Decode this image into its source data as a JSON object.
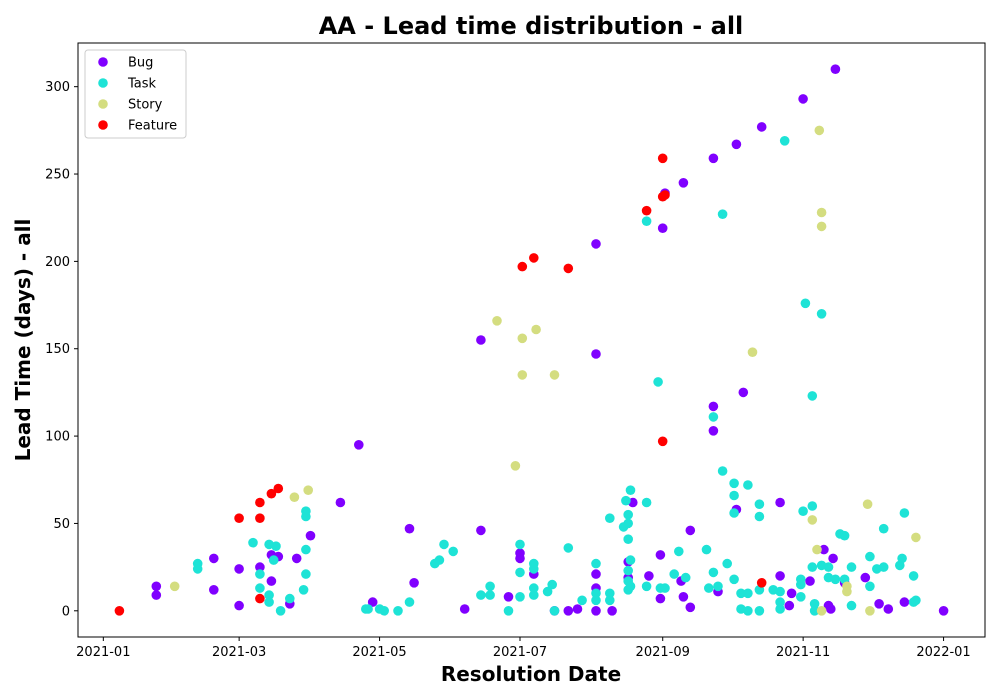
{
  "chart_data": {
    "type": "scatter",
    "title": "AA - Lead time distribution - all",
    "xlabel": "Resolution Date",
    "ylabel": "Lead Time (days) - all",
    "xlim": [
      "2020-12-21",
      "2022-01-19"
    ],
    "ylim": [
      -15,
      325
    ],
    "x_ticks": [
      "2021-01",
      "2021-03",
      "2021-05",
      "2021-07",
      "2021-09",
      "2021-11",
      "2022-01"
    ],
    "y_ticks": [
      0,
      50,
      100,
      150,
      200,
      250,
      300
    ],
    "legend_position": "top-left",
    "grid": false,
    "series": [
      {
        "name": "Bug",
        "color": "#8000ff",
        "points": [
          [
            "2021-01-24",
            14
          ],
          [
            "2021-01-24",
            9
          ],
          [
            "2021-02-18",
            30
          ],
          [
            "2021-02-18",
            12
          ],
          [
            "2021-03-01",
            24
          ],
          [
            "2021-03-01",
            3
          ],
          [
            "2021-03-10",
            25
          ],
          [
            "2021-03-15",
            32
          ],
          [
            "2021-03-15",
            17
          ],
          [
            "2021-03-18",
            31
          ],
          [
            "2021-03-23",
            4
          ],
          [
            "2021-03-26",
            30
          ],
          [
            "2021-04-01",
            43
          ],
          [
            "2021-04-14",
            62
          ],
          [
            "2021-04-22",
            95
          ],
          [
            "2021-05-14",
            47
          ],
          [
            "2021-04-28",
            5
          ],
          [
            "2021-05-16",
            16
          ],
          [
            "2021-06-07",
            1
          ],
          [
            "2021-06-14",
            155
          ],
          [
            "2021-06-14",
            46
          ],
          [
            "2021-06-26",
            8
          ],
          [
            "2021-07-01",
            33
          ],
          [
            "2021-07-01",
            30
          ],
          [
            "2021-07-07",
            21
          ],
          [
            "2021-07-16",
            0
          ],
          [
            "2021-07-22",
            0
          ],
          [
            "2021-07-26",
            1
          ],
          [
            "2021-08-03",
            210
          ],
          [
            "2021-08-03",
            147
          ],
          [
            "2021-08-03",
            21
          ],
          [
            "2021-08-03",
            13
          ],
          [
            "2021-08-03",
            0
          ],
          [
            "2021-08-10",
            0
          ],
          [
            "2021-08-17",
            28
          ],
          [
            "2021-08-17",
            19
          ],
          [
            "2021-08-19",
            62
          ],
          [
            "2021-08-26",
            20
          ],
          [
            "2021-08-31",
            32
          ],
          [
            "2021-09-01",
            219
          ],
          [
            "2021-09-02",
            239
          ],
          [
            "2021-09-10",
            245
          ],
          [
            "2021-09-10",
            8
          ],
          [
            "2021-09-13",
            46
          ],
          [
            "2021-09-13",
            2
          ],
          [
            "2021-09-23",
            259
          ],
          [
            "2021-09-23",
            117
          ],
          [
            "2021-09-23",
            103
          ],
          [
            "2021-09-25",
            11
          ],
          [
            "2021-10-03",
            267
          ],
          [
            "2021-10-03",
            58
          ],
          [
            "2021-10-06",
            125
          ],
          [
            "2021-10-14",
            277
          ],
          [
            "2021-10-22",
            62
          ],
          [
            "2021-10-22",
            20
          ],
          [
            "2021-10-26",
            3
          ],
          [
            "2021-10-27",
            10
          ],
          [
            "2021-11-04",
            17
          ],
          [
            "2021-11-10",
            35
          ],
          [
            "2021-11-12",
            3
          ],
          [
            "2021-11-14",
            30
          ],
          [
            "2021-11-15",
            310
          ],
          [
            "2021-11-01",
            293
          ],
          [
            "2021-11-19",
            16
          ],
          [
            "2021-11-28",
            19
          ],
          [
            "2021-12-04",
            4
          ],
          [
            "2021-12-08",
            1
          ],
          [
            "2021-12-15",
            5
          ],
          [
            "2022-01-01",
            0
          ],
          [
            "2021-11-13",
            1
          ],
          [
            "2021-09-09",
            17
          ],
          [
            "2021-08-31",
            7
          ]
        ]
      },
      {
        "name": "Task",
        "color": "#1ee3d6",
        "points": [
          [
            "2021-02-11",
            27
          ],
          [
            "2021-02-11",
            24
          ],
          [
            "2021-03-07",
            39
          ],
          [
            "2021-03-10",
            21
          ],
          [
            "2021-03-10",
            13
          ],
          [
            "2021-03-14",
            38
          ],
          [
            "2021-03-14",
            9
          ],
          [
            "2021-03-14",
            5
          ],
          [
            "2021-03-16",
            29
          ],
          [
            "2021-03-17",
            37
          ],
          [
            "2021-03-19",
            0
          ],
          [
            "2021-03-23",
            7
          ],
          [
            "2021-03-29",
            12
          ],
          [
            "2021-03-30",
            57
          ],
          [
            "2021-03-30",
            54
          ],
          [
            "2021-03-30",
            35
          ],
          [
            "2021-03-30",
            21
          ],
          [
            "2021-04-25",
            1
          ],
          [
            "2021-04-26",
            1
          ],
          [
            "2021-05-01",
            1
          ],
          [
            "2021-05-03",
            0
          ],
          [
            "2021-05-09",
            0
          ],
          [
            "2021-05-14",
            5
          ],
          [
            "2021-05-25",
            27
          ],
          [
            "2021-05-27",
            29
          ],
          [
            "2021-05-29",
            38
          ],
          [
            "2021-06-02",
            34
          ],
          [
            "2021-06-14",
            9
          ],
          [
            "2021-06-18",
            14
          ],
          [
            "2021-06-18",
            9
          ],
          [
            "2021-06-26",
            0
          ],
          [
            "2021-07-01",
            38
          ],
          [
            "2021-07-01",
            22
          ],
          [
            "2021-07-01",
            8
          ],
          [
            "2021-07-07",
            27
          ],
          [
            "2021-07-07",
            24
          ],
          [
            "2021-07-07",
            13
          ],
          [
            "2021-07-07",
            9
          ],
          [
            "2021-07-13",
            11
          ],
          [
            "2021-07-15",
            15
          ],
          [
            "2021-07-16",
            0
          ],
          [
            "2021-07-22",
            36
          ],
          [
            "2021-07-28",
            6
          ],
          [
            "2021-08-03",
            27
          ],
          [
            "2021-08-03",
            10
          ],
          [
            "2021-08-03",
            6
          ],
          [
            "2021-08-09",
            53
          ],
          [
            "2021-08-09",
            10
          ],
          [
            "2021-08-09",
            6
          ],
          [
            "2021-08-15",
            48
          ],
          [
            "2021-08-16",
            63
          ],
          [
            "2021-08-17",
            55
          ],
          [
            "2021-08-17",
            50
          ],
          [
            "2021-08-17",
            41
          ],
          [
            "2021-08-17",
            23
          ],
          [
            "2021-08-17",
            17
          ],
          [
            "2021-08-17",
            12
          ],
          [
            "2021-08-18",
            69
          ],
          [
            "2021-08-18",
            29
          ],
          [
            "2021-08-18",
            14
          ],
          [
            "2021-08-25",
            62
          ],
          [
            "2021-08-25",
            14
          ],
          [
            "2021-08-25",
            223
          ],
          [
            "2021-08-30",
            131
          ],
          [
            "2021-08-31",
            13
          ],
          [
            "2021-09-02",
            13
          ],
          [
            "2021-09-06",
            21
          ],
          [
            "2021-09-08",
            34
          ],
          [
            "2021-09-11",
            19
          ],
          [
            "2021-09-20",
            35
          ],
          [
            "2021-09-21",
            13
          ],
          [
            "2021-09-23",
            111
          ],
          [
            "2021-09-23",
            22
          ],
          [
            "2021-09-25",
            14
          ],
          [
            "2021-09-27",
            80
          ],
          [
            "2021-09-27",
            227
          ],
          [
            "2021-09-29",
            27
          ],
          [
            "2021-10-02",
            73
          ],
          [
            "2021-10-02",
            66
          ],
          [
            "2021-10-02",
            56
          ],
          [
            "2021-10-02",
            18
          ],
          [
            "2021-10-05",
            10
          ],
          [
            "2021-10-05",
            1
          ],
          [
            "2021-10-08",
            72
          ],
          [
            "2021-10-08",
            10
          ],
          [
            "2021-10-08",
            0
          ],
          [
            "2021-10-13",
            61
          ],
          [
            "2021-10-13",
            54
          ],
          [
            "2021-10-13",
            12
          ],
          [
            "2021-10-13",
            0
          ],
          [
            "2021-10-19",
            12
          ],
          [
            "2021-10-22",
            11
          ],
          [
            "2021-10-22",
            5
          ],
          [
            "2021-10-22",
            1
          ],
          [
            "2021-10-24",
            269
          ],
          [
            "2021-10-31",
            18
          ],
          [
            "2021-10-31",
            15
          ],
          [
            "2021-10-31",
            8
          ],
          [
            "2021-11-01",
            57
          ],
          [
            "2021-11-02",
            176
          ],
          [
            "2021-11-05",
            123
          ],
          [
            "2021-11-05",
            60
          ],
          [
            "2021-11-05",
            25
          ],
          [
            "2021-11-06",
            4
          ],
          [
            "2021-11-06",
            0
          ],
          [
            "2021-11-09",
            170
          ],
          [
            "2021-11-09",
            26
          ],
          [
            "2021-11-12",
            19
          ],
          [
            "2021-11-12",
            25
          ],
          [
            "2021-11-15",
            18
          ],
          [
            "2021-11-17",
            44
          ],
          [
            "2021-11-19",
            43
          ],
          [
            "2021-11-19",
            18
          ],
          [
            "2021-11-22",
            25
          ],
          [
            "2021-11-22",
            3
          ],
          [
            "2021-11-30",
            31
          ],
          [
            "2021-11-30",
            14
          ],
          [
            "2021-12-03",
            24
          ],
          [
            "2021-12-06",
            47
          ],
          [
            "2021-12-06",
            25
          ],
          [
            "2021-12-13",
            26
          ],
          [
            "2021-12-14",
            30
          ],
          [
            "2021-12-15",
            56
          ],
          [
            "2021-12-19",
            20
          ],
          [
            "2021-12-19",
            5
          ],
          [
            "2021-12-20",
            6
          ]
        ]
      },
      {
        "name": "Story",
        "color": "#d4dd80",
        "points": [
          [
            "2021-02-01",
            14
          ],
          [
            "2021-03-25",
            65
          ],
          [
            "2021-03-31",
            69
          ],
          [
            "2021-06-21",
            166
          ],
          [
            "2021-06-29",
            83
          ],
          [
            "2021-07-02",
            156
          ],
          [
            "2021-07-02",
            135
          ],
          [
            "2021-07-08",
            161
          ],
          [
            "2021-07-16",
            135
          ],
          [
            "2021-10-10",
            148
          ],
          [
            "2021-11-05",
            52
          ],
          [
            "2021-11-07",
            35
          ],
          [
            "2021-11-08",
            275
          ],
          [
            "2021-11-09",
            228
          ],
          [
            "2021-11-09",
            220
          ],
          [
            "2021-11-09",
            0
          ],
          [
            "2021-11-20",
            11
          ],
          [
            "2021-11-20",
            14
          ],
          [
            "2021-11-29",
            61
          ],
          [
            "2021-11-30",
            0
          ],
          [
            "2021-12-20",
            42
          ]
        ]
      },
      {
        "name": "Feature",
        "color": "#ff0000",
        "points": [
          [
            "2021-01-08",
            0
          ],
          [
            "2021-03-01",
            53
          ],
          [
            "2021-03-10",
            62
          ],
          [
            "2021-03-10",
            53
          ],
          [
            "2021-03-10",
            7
          ],
          [
            "2021-03-15",
            67
          ],
          [
            "2021-03-18",
            70
          ],
          [
            "2021-07-02",
            197
          ],
          [
            "2021-07-07",
            202
          ],
          [
            "2021-07-22",
            196
          ],
          [
            "2021-08-25",
            229
          ],
          [
            "2021-09-01",
            259
          ],
          [
            "2021-09-01",
            237
          ],
          [
            "2021-09-02",
            238
          ],
          [
            "2021-09-01",
            97
          ],
          [
            "2021-10-14",
            16
          ]
        ]
      }
    ]
  }
}
